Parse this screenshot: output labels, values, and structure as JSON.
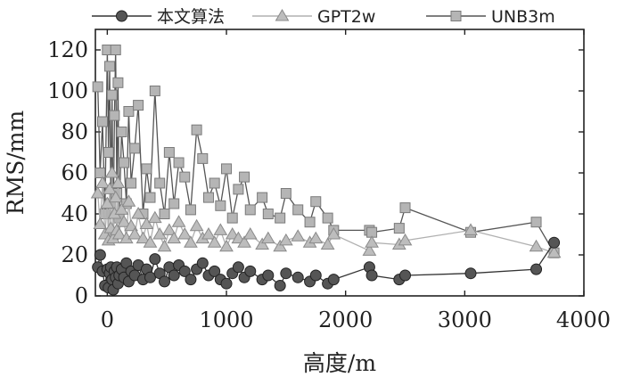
{
  "chart_data": {
    "type": "line",
    "xlabel": "高度/m",
    "ylabel": "RMS/mm",
    "xlim": [
      -100,
      4000
    ],
    "ylim": [
      0,
      130
    ],
    "xticks": [
      0,
      1000,
      2000,
      3000,
      4000
    ],
    "yticks": [
      0,
      20,
      40,
      60,
      80,
      100,
      120
    ],
    "grid": false,
    "legend_position": "top",
    "series": [
      {
        "name": "本文算法",
        "color": "#444444",
        "marker": "circle",
        "x": [
          -80,
          -60,
          -40,
          -20,
          0,
          10,
          20,
          30,
          40,
          50,
          60,
          70,
          80,
          90,
          100,
          120,
          140,
          160,
          180,
          200,
          230,
          260,
          300,
          330,
          360,
          400,
          440,
          480,
          520,
          560,
          600,
          650,
          700,
          750,
          800,
          850,
          900,
          950,
          1000,
          1050,
          1100,
          1150,
          1200,
          1300,
          1350,
          1450,
          1500,
          1600,
          1700,
          1750,
          1850,
          1900,
          2200,
          2220,
          2450,
          2500,
          3050,
          3600,
          3750
        ],
        "y": [
          14,
          20,
          12,
          5,
          13,
          4,
          11,
          14,
          8,
          3,
          12,
          9,
          14,
          6,
          10,
          13,
          9,
          16,
          7,
          12,
          10,
          15,
          8,
          13,
          9,
          18,
          11,
          7,
          14,
          10,
          15,
          12,
          8,
          13,
          16,
          10,
          12,
          8,
          6,
          11,
          14,
          9,
          12,
          8,
          10,
          5,
          11,
          9,
          7,
          10,
          6,
          8,
          14,
          10,
          8,
          10,
          11,
          13,
          26
        ]
      },
      {
        "name": "GPT2w",
        "color": "#a8a8a8",
        "marker": "triangle",
        "x": [
          -80,
          -60,
          -40,
          -20,
          0,
          10,
          20,
          30,
          40,
          50,
          60,
          70,
          80,
          90,
          100,
          120,
          140,
          160,
          180,
          200,
          230,
          260,
          300,
          330,
          360,
          400,
          440,
          480,
          520,
          560,
          600,
          650,
          700,
          750,
          800,
          850,
          900,
          950,
          1000,
          1050,
          1100,
          1150,
          1200,
          1300,
          1350,
          1450,
          1500,
          1600,
          1700,
          1750,
          1850,
          1900,
          2200,
          2220,
          2450,
          2500,
          3050,
          3600,
          3750
        ],
        "y": [
          50,
          35,
          55,
          30,
          45,
          27,
          52,
          33,
          60,
          28,
          40,
          48,
          32,
          55,
          30,
          42,
          36,
          28,
          46,
          34,
          30,
          40,
          28,
          35,
          26,
          38,
          30,
          24,
          32,
          28,
          36,
          30,
          26,
          34,
          28,
          30,
          26,
          32,
          24,
          30,
          28,
          26,
          30,
          25,
          28,
          24,
          27,
          29,
          26,
          28,
          25,
          30,
          22,
          26,
          25,
          27,
          32,
          24,
          21
        ]
      },
      {
        "name": "UNB3m",
        "color": "#9a9a9a",
        "marker": "square",
        "x": [
          -80,
          -60,
          -40,
          -20,
          0,
          10,
          20,
          30,
          40,
          50,
          60,
          70,
          80,
          90,
          100,
          120,
          140,
          160,
          180,
          200,
          230,
          260,
          300,
          330,
          360,
          400,
          440,
          480,
          520,
          560,
          600,
          650,
          700,
          750,
          800,
          850,
          900,
          950,
          1000,
          1050,
          1100,
          1150,
          1200,
          1300,
          1350,
          1450,
          1500,
          1600,
          1700,
          1750,
          1850,
          1900,
          2200,
          2220,
          2450,
          2500,
          3050,
          3600,
          3750
        ],
        "y": [
          102,
          60,
          85,
          40,
          120,
          70,
          112,
          45,
          98,
          30,
          88,
          120,
          50,
          104,
          38,
          80,
          65,
          45,
          90,
          55,
          72,
          93,
          40,
          62,
          48,
          100,
          55,
          40,
          70,
          45,
          65,
          58,
          42,
          81,
          67,
          48,
          55,
          44,
          62,
          38,
          52,
          58,
          42,
          48,
          40,
          38,
          50,
          42,
          36,
          46,
          38,
          32,
          32,
          31,
          33,
          43,
          31,
          36,
          21
        ]
      }
    ]
  }
}
